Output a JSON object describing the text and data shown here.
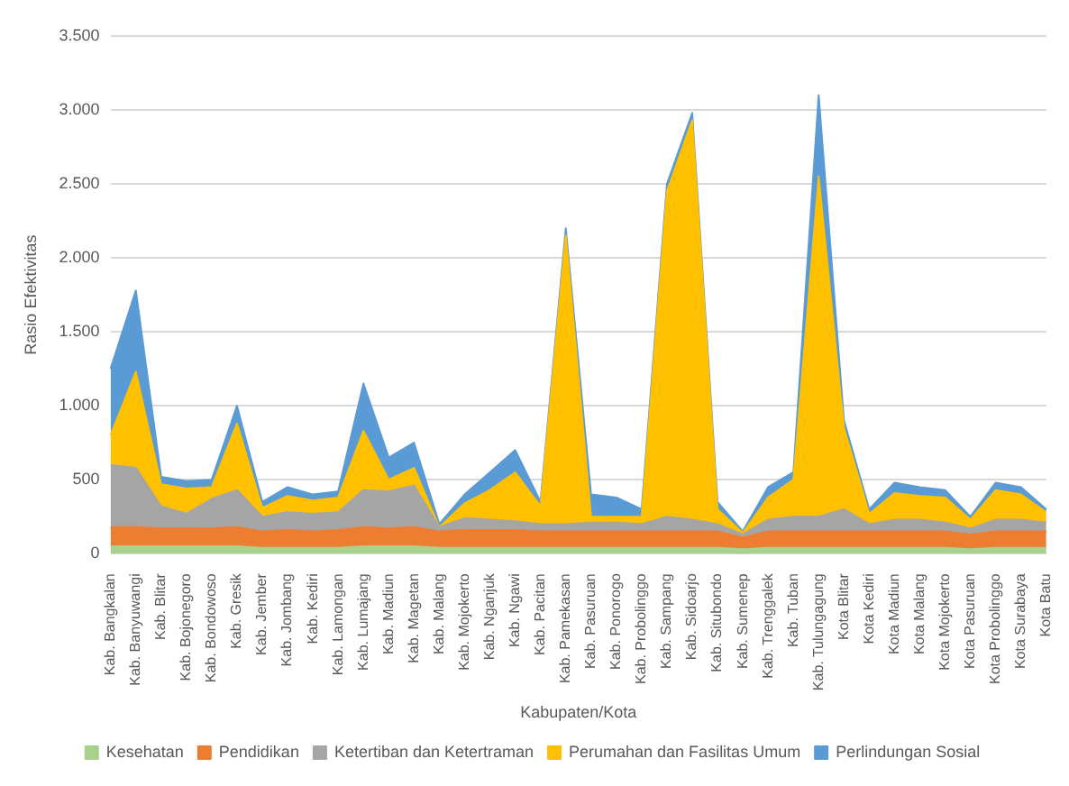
{
  "chart_data": {
    "type": "area",
    "stacked": true,
    "xlabel": "Kabupaten/Kota",
    "ylabel": "Rasio Efektivitas",
    "categories": [
      "Kab. Bangkalan",
      "Kab. Banyuwangi",
      "Kab. Blitar",
      "Kab. Bojonegoro",
      "Kab. Bondowoso",
      "Kab. Gresik",
      "Kab. Jember",
      "Kab. Jombang",
      "Kab. Kediri",
      "Kab. Lamongan",
      "Kab. Lumajang",
      "Kab. Madiun",
      "Kab. Magetan",
      "Kab. Malang",
      "Kab. Mojokerto",
      "Kab. Nganjuk",
      "Kab. Ngawi",
      "Kab. Pacitan",
      "Kab. Pamekasan",
      "Kab. Pasuruan",
      "Kab. Ponorogo",
      "Kab. Probolinggo",
      "Kab. Sampang",
      "Kab. Sidoarjo",
      "Kab. Situbondo",
      "Kab. Sumenep",
      "Kab. Trenggalek",
      "Kab. Tuban",
      "Kab. Tulungagung",
      "Kota Blitar",
      "Kota Kediri",
      "Kota Madiun",
      "Kota Malang",
      "Kota Mojokerto",
      "Kota Pasuruan",
      "Kota Probolinggo",
      "Kota Surabaya",
      "Kota Batu"
    ],
    "series": [
      {
        "name": "Kesehatan",
        "color": "#a9d18e",
        "values": [
          50,
          50,
          50,
          50,
          50,
          50,
          40,
          40,
          40,
          40,
          50,
          50,
          50,
          40,
          40,
          40,
          40,
          40,
          40,
          40,
          40,
          40,
          40,
          40,
          40,
          30,
          40,
          40,
          40,
          40,
          40,
          40,
          40,
          40,
          30,
          40,
          40,
          40
        ]
      },
      {
        "name": "Pendidikan",
        "color": "#ed7d31",
        "values": [
          130,
          130,
          120,
          120,
          120,
          130,
          110,
          120,
          110,
          120,
          130,
          120,
          130,
          110,
          120,
          120,
          120,
          110,
          110,
          110,
          110,
          110,
          110,
          110,
          110,
          80,
          110,
          110,
          110,
          110,
          110,
          110,
          110,
          110,
          100,
          110,
          110,
          110
        ]
      },
      {
        "name": "Ketertiban dan Ketertraman",
        "color": "#a5a5a5",
        "values": [
          420,
          400,
          150,
          100,
          200,
          250,
          100,
          120,
          120,
          120,
          250,
          250,
          280,
          30,
          80,
          70,
          60,
          50,
          50,
          60,
          60,
          50,
          100,
          80,
          50,
          20,
          80,
          100,
          100,
          150,
          50,
          80,
          80,
          60,
          40,
          80,
          80,
          60
        ]
      },
      {
        "name": "Perumahan dan Fasilitas Umum",
        "color": "#ffc000",
        "values": [
          200,
          650,
          150,
          170,
          80,
          450,
          60,
          110,
          90,
          100,
          400,
          80,
          120,
          0,
          100,
          200,
          330,
          120,
          1950,
          40,
          40,
          50,
          2200,
          2700,
          100,
          10,
          150,
          250,
          2300,
          550,
          70,
          180,
          160,
          170,
          60,
          200,
          170,
          70
        ]
      },
      {
        "name": "Perlindungan Sosial",
        "color": "#5b9bd5",
        "values": [
          450,
          550,
          50,
          50,
          50,
          120,
          40,
          60,
          40,
          40,
          320,
          150,
          170,
          20,
          60,
          120,
          150,
          30,
          50,
          150,
          130,
          50,
          50,
          50,
          50,
          10,
          70,
          50,
          550,
          50,
          30,
          70,
          60,
          50,
          20,
          50,
          50,
          20
        ]
      }
    ],
    "ylim": [
      0,
      3500
    ],
    "yticks": [
      {
        "value": 0,
        "label": "0"
      },
      {
        "value": 500,
        "label": "500"
      },
      {
        "value": 1000,
        "label": "1.000"
      },
      {
        "value": 1500,
        "label": "1.500"
      },
      {
        "value": 2000,
        "label": "2.000"
      },
      {
        "value": 2500,
        "label": "2.500"
      },
      {
        "value": 3000,
        "label": "3.000"
      },
      {
        "value": 3500,
        "label": "3.500"
      }
    ],
    "grid": "y",
    "legend": "bottom",
    "marker": "none"
  }
}
